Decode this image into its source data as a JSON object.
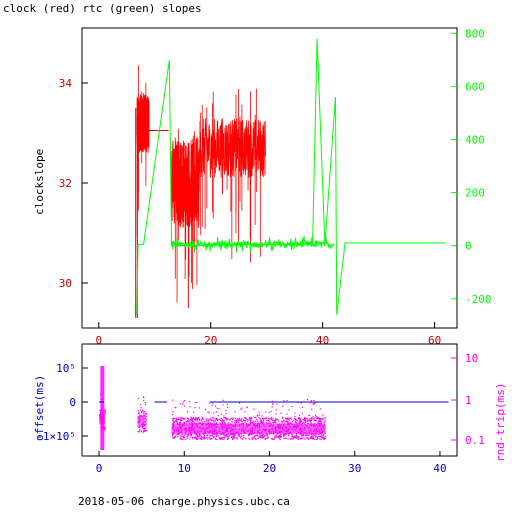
{
  "title": "clock (red) rtc (green) slopes",
  "footer": "2018-05-06 charge.physics.ubc.ca",
  "colors": {
    "red": "#ff0000",
    "green": "#00ff00",
    "blue": "#0000cc",
    "magenta": "#ff00ff",
    "darkred": "#cc0000",
    "black": "#000000"
  },
  "chart_data": [
    {
      "type": "line",
      "title": "clock (red) rtc (green) slopes",
      "ylabel_left": "clockslope",
      "xlim": [
        -3,
        64
      ],
      "ylim_left": [
        29.1,
        35.1
      ],
      "ylim_right": [
        -310,
        820
      ],
      "x_ticks": [
        "0",
        "20",
        "40",
        "60"
      ],
      "y_left_ticks": [
        "30",
        "32",
        "34"
      ],
      "y_right_ticks": [
        "-200",
        "0",
        "200",
        "400",
        "600",
        "800"
      ],
      "series": [
        {
          "axis": "left",
          "color": "red",
          "segments": [
            {
              "x_start": 6.8,
              "x_end": 9.0,
              "base": 33.2,
              "noise": 0.6,
              "spikes": 5
            },
            {
              "x_start": 13.0,
              "x_end": 18.0,
              "base": 32.0,
              "noise": 0.9,
              "spikes": 12
            },
            {
              "x_start": 18.0,
              "x_end": 29.8,
              "base": 32.7,
              "noise": 0.6,
              "spikes": 22
            }
          ],
          "plateau": {
            "x": [
              7.5,
              12.5
            ],
            "y": 33.05
          },
          "dropouts": [
            {
              "x": 6.9,
              "y": 29.3
            },
            {
              "x": 16.0,
              "y": 29.5
            }
          ]
        },
        {
          "axis": "right",
          "color": "green",
          "points": [
            [
              6.8,
              -260
            ],
            [
              7.0,
              5
            ],
            [
              8.0,
              5
            ],
            [
              12.6,
              700
            ],
            [
              13.0,
              0
            ],
            [
              30.0,
              5
            ],
            [
              38.2,
              5
            ],
            [
              39.0,
              780
            ],
            [
              40.4,
              5
            ],
            [
              42.3,
              560
            ],
            [
              42.5,
              -260
            ],
            [
              44.0,
              10
            ],
            [
              62.0,
              10
            ]
          ],
          "noise_band": {
            "x": [
              13.0,
              42.0
            ],
            "level": 5,
            "amplitude": 20
          }
        }
      ]
    },
    {
      "type": "scatter",
      "ylabel_left": "offset(ms)",
      "ylabel_right": "rnd-trip(ms)",
      "xlim": [
        -2,
        42
      ],
      "x_ticks": [
        "0",
        "10",
        "20",
        "30",
        "40"
      ],
      "y_left_ticks": [
        "10⁵",
        "0",
        "-1×10⁵"
      ],
      "y_right_ticks": [
        "10",
        "1",
        "0.1"
      ],
      "series": [
        {
          "name": "offset",
          "color": "blue",
          "segments": [
            [
              0.0,
              0.6,
              0
            ],
            [
              6.5,
              8.0,
              0
            ],
            [
              13.0,
              41.0,
              0
            ]
          ]
        },
        {
          "name": "rnd-trip",
          "color": "magenta",
          "clusters": [
            [
              0,
              0.7,
              0.35
            ],
            [
              4.5,
              5.5,
              0.3
            ],
            [
              8.5,
              26.5,
              0.2
            ]
          ]
        }
      ]
    }
  ]
}
